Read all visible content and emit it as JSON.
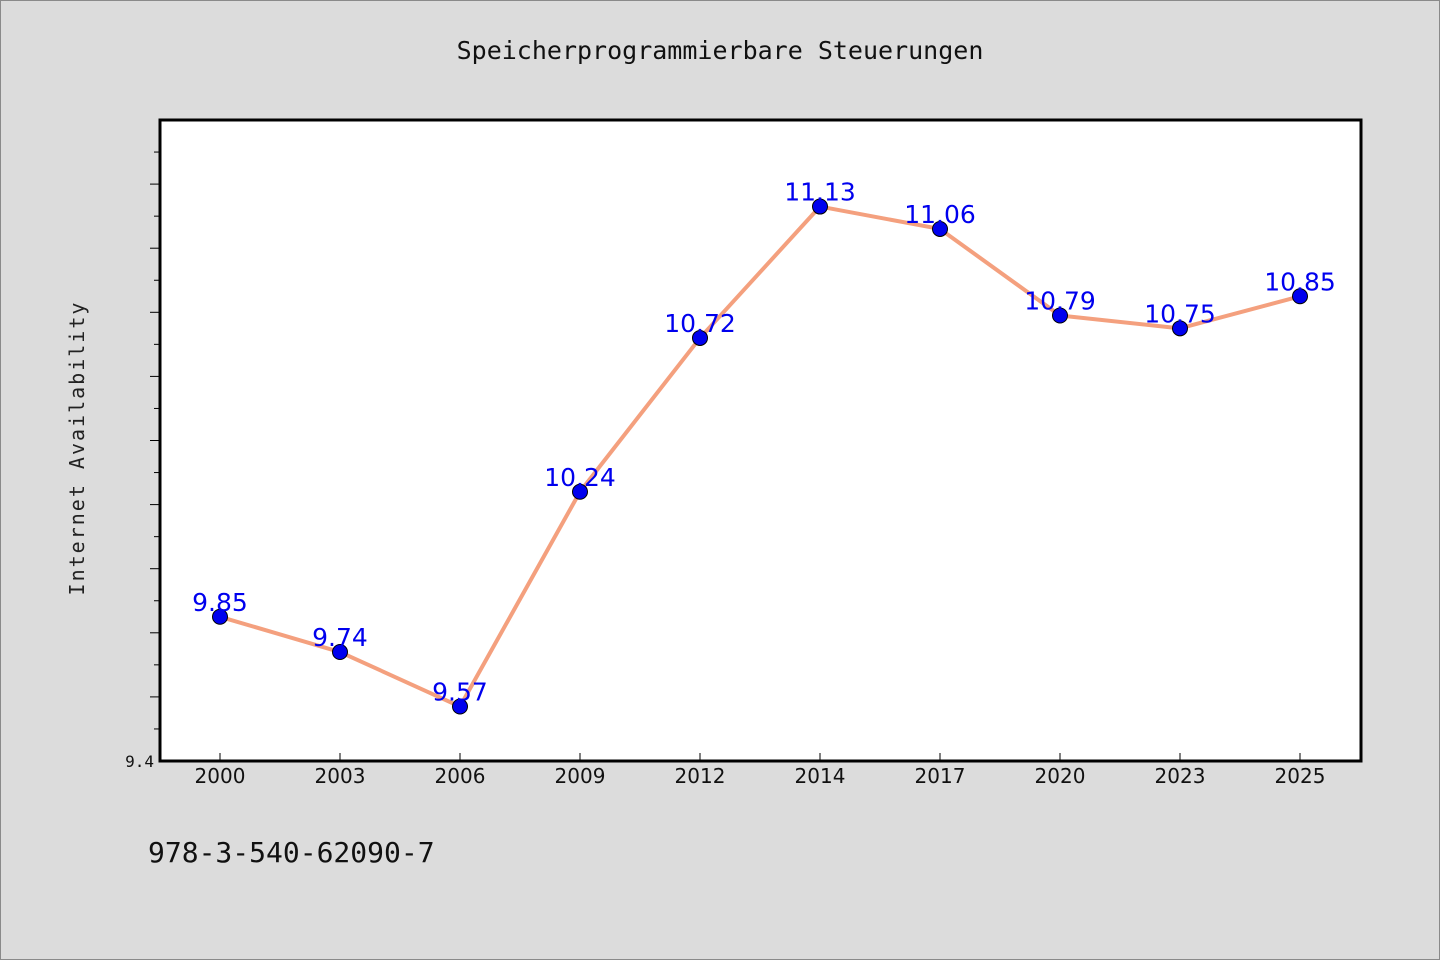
{
  "chart_data": {
    "type": "line",
    "title": "Speicherprogrammierbare Steuerungen",
    "xlabel": "",
    "ylabel": "Internet Availability",
    "categories": [
      "2000",
      "2003",
      "2006",
      "2009",
      "2012",
      "2014",
      "2017",
      "2020",
      "2023",
      "2025"
    ],
    "series": [
      {
        "values": [
          9.85,
          9.74,
          9.57,
          10.24,
          10.72,
          11.13,
          11.06,
          10.79,
          10.75,
          10.85
        ],
        "data_labels": [
          "9.85",
          "9.74",
          "9.57",
          "10.24",
          "10.72",
          "11.13",
          "11.06",
          "10.79",
          "10.75",
          "10.85"
        ]
      }
    ],
    "ylim": [
      9.4,
      11.4
    ],
    "y_tick_labels": [
      "9.4"
    ],
    "grid": false,
    "legend": "none",
    "colors": {
      "line": "#f4a07e",
      "marker": "#0000ee",
      "data_label": "#0000ee",
      "plot_background": "#ffffff",
      "page_background": "#dcdcdc"
    }
  },
  "footer": {
    "code": "978-3-540-62090-7"
  }
}
